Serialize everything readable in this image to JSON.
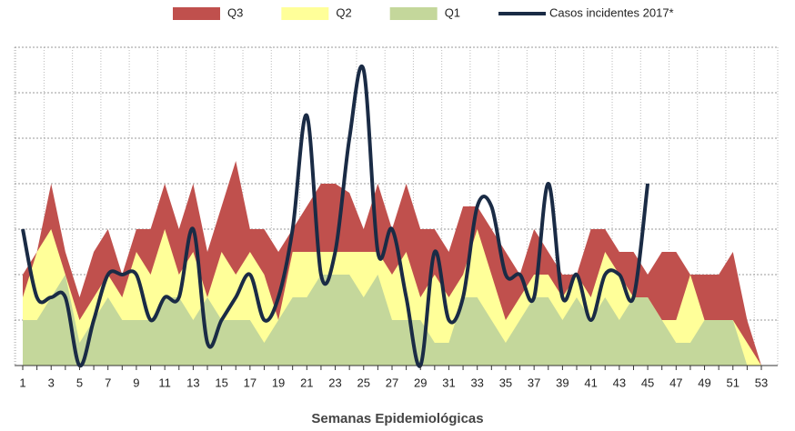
{
  "chart_data": {
    "type": "area-line",
    "x_label": "Semanas Epidemiológicas",
    "categories": [
      "1",
      null,
      "3",
      null,
      "5",
      null,
      "7",
      null,
      "9",
      null,
      "11",
      null,
      "13",
      null,
      "15",
      null,
      "17",
      null,
      "19",
      null,
      "21",
      null,
      "23",
      null,
      "25",
      null,
      "27",
      null,
      "29",
      null,
      "31",
      null,
      "33",
      null,
      "35",
      null,
      "37",
      null,
      "39",
      null,
      "41",
      null,
      "43",
      null,
      "45",
      null,
      "47",
      null,
      "49",
      null,
      "51",
      null,
      "53"
    ],
    "series": [
      {
        "name": "Q3",
        "color": "#c0504d",
        "kind": "area",
        "values": [
          2,
          2.5,
          4,
          2.5,
          1.5,
          2.5,
          3,
          2,
          3,
          3,
          4,
          3,
          4,
          2.5,
          3.5,
          4.5,
          3,
          3,
          2.5,
          3,
          3.5,
          4,
          4,
          3.8,
          3,
          4,
          3,
          4,
          3,
          3,
          2.5,
          3.5,
          3.5,
          3,
          2.5,
          2,
          3,
          2.5,
          2,
          2,
          3,
          3,
          2.5,
          2.5,
          2,
          2.5,
          2.5,
          2,
          2,
          2,
          2.5,
          1,
          0
        ]
      },
      {
        "name": "Q2",
        "color": "#ffff99",
        "kind": "area",
        "values": [
          1.5,
          2.5,
          3,
          2,
          1,
          1.5,
          2,
          1.5,
          2.5,
          2,
          3,
          2,
          2.5,
          1.5,
          2.5,
          2,
          2.5,
          2,
          1,
          2.5,
          2.5,
          2.5,
          2.5,
          2.5,
          2.5,
          2.5,
          2,
          2.5,
          1.5,
          2,
          1.5,
          2,
          3,
          2,
          1,
          1.5,
          2,
          2,
          1.5,
          2,
          1.5,
          2.5,
          2,
          1.5,
          1.5,
          1,
          1,
          2,
          1,
          1,
          1,
          0.5,
          0
        ]
      },
      {
        "name": "Q1",
        "color": "#c4d79b",
        "kind": "area",
        "values": [
          1,
          1,
          1.5,
          2,
          0.5,
          1,
          1.5,
          1,
          1,
          1,
          1.5,
          1.5,
          1,
          1.5,
          1,
          1,
          1,
          0.5,
          1,
          1.5,
          1.5,
          2,
          2,
          2,
          1.5,
          2,
          1,
          1,
          1,
          0.5,
          0.5,
          1.5,
          1.5,
          1,
          0.5,
          1,
          1.5,
          1.5,
          1,
          1.5,
          1,
          1.5,
          1,
          1.5,
          1.5,
          1,
          0.5,
          0.5,
          1,
          1,
          1,
          0,
          0
        ]
      },
      {
        "name": "Casos incidentes 2017*",
        "color": "#1a2b45",
        "kind": "line",
        "values": [
          3,
          1.5,
          1.5,
          1.5,
          0,
          1,
          2,
          2,
          2,
          1,
          1.5,
          1.5,
          3,
          0.5,
          1,
          1.5,
          2,
          1,
          1.5,
          3,
          5.5,
          2,
          2.5,
          5,
          6.5,
          2.5,
          3,
          1.5,
          0,
          2.5,
          1,
          1.5,
          3.5,
          3.5,
          2,
          2,
          1.5,
          4,
          1.5,
          2,
          1,
          2,
          2,
          1.5,
          4,
          null,
          null,
          null,
          null,
          null,
          null,
          null,
          null
        ]
      }
    ],
    "ylim": [
      0,
      7
    ],
    "yticks": [
      0,
      1,
      2,
      3,
      4,
      5,
      6,
      7
    ],
    "grid": true,
    "legend": "top"
  }
}
